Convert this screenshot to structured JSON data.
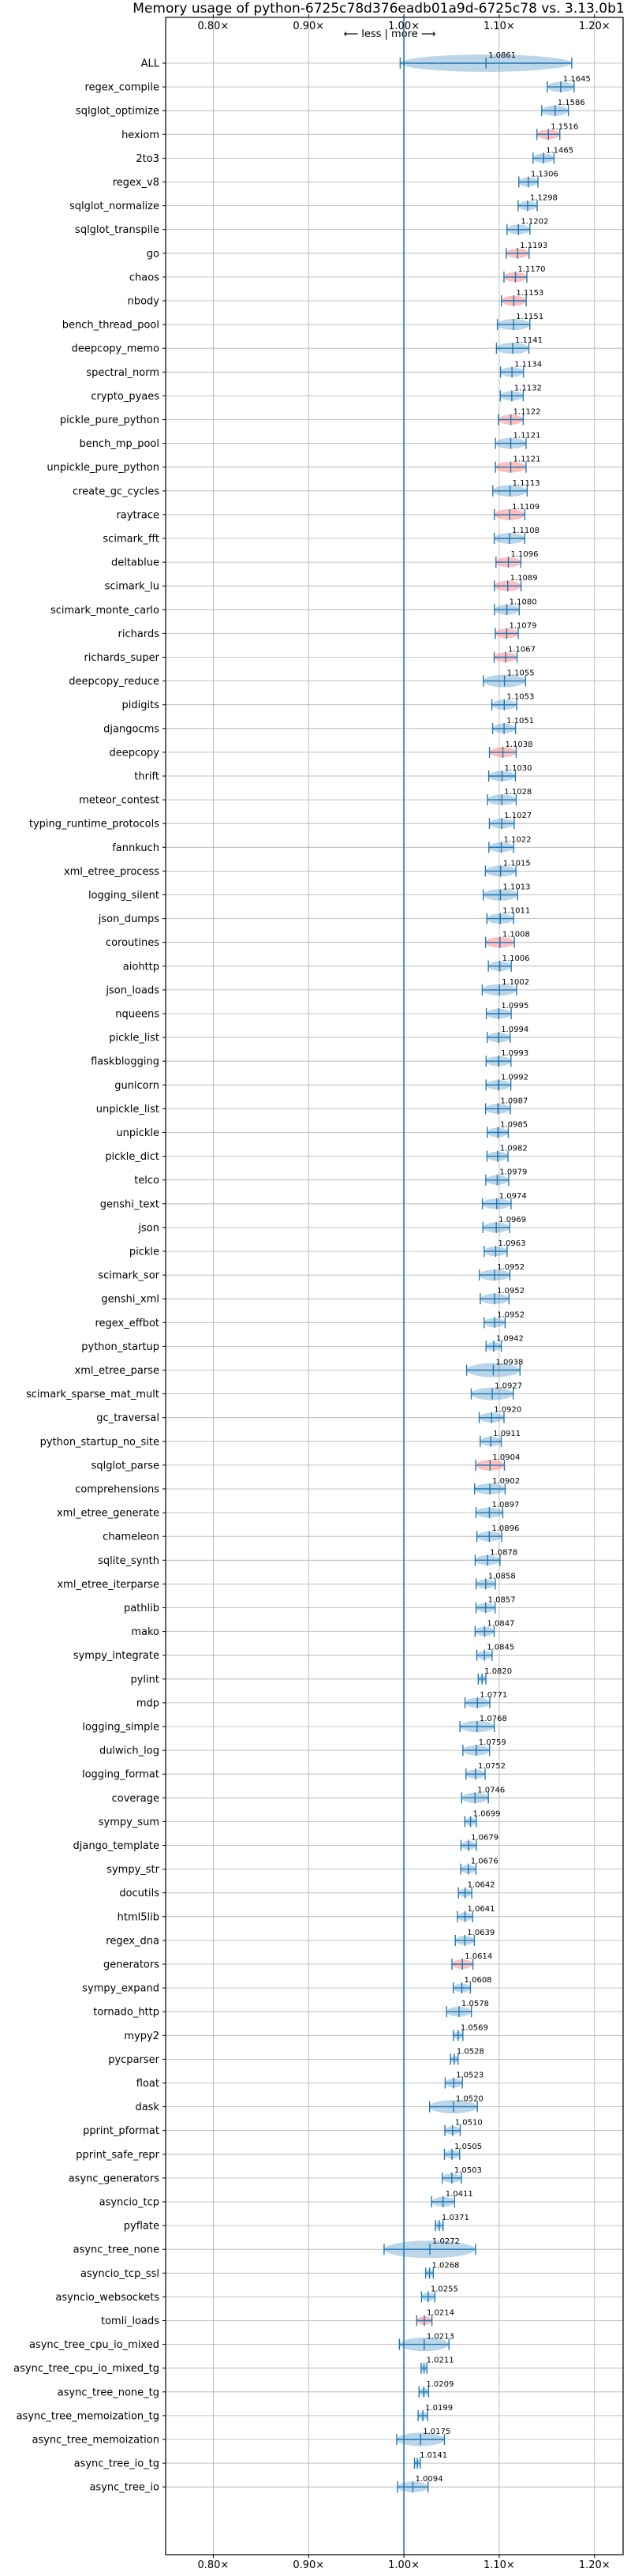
{
  "chart_data": {
    "type": "violin",
    "title": "Memory usage of python-6725c78d376eadb01a9d-6725c78 vs. 3.13.0b1",
    "xlabel": "",
    "ylabel": "",
    "direction_label": "⟵ less | more ⟶",
    "xlim": [
      0.75,
      1.23
    ],
    "x_ticks": [
      0.8,
      0.9,
      1.0,
      1.1,
      1.2
    ],
    "x_tick_labels": [
      "0.80×",
      "0.90×",
      "1.00×",
      "1.10×",
      "1.20×"
    ],
    "reference_line": 1.0,
    "grid": true,
    "colors": {
      "violin": "#1f77b4",
      "highlight": "#ff7f7f",
      "reference": "#1f77b4",
      "grid": "#b0b0b0"
    },
    "categories": [
      "ALL",
      "regex_compile",
      "sqlglot_optimize",
      "hexiom",
      "2to3",
      "regex_v8",
      "sqlglot_normalize",
      "sqlglot_transpile",
      "go",
      "chaos",
      "nbody",
      "bench_thread_pool",
      "deepcopy_memo",
      "spectral_norm",
      "crypto_pyaes",
      "pickle_pure_python",
      "bench_mp_pool",
      "unpickle_pure_python",
      "create_gc_cycles",
      "raytrace",
      "scimark_fft",
      "deltablue",
      "scimark_lu",
      "scimark_monte_carlo",
      "richards",
      "richards_super",
      "deepcopy_reduce",
      "pidigits",
      "djangocms",
      "deepcopy",
      "thrift",
      "meteor_contest",
      "typing_runtime_protocols",
      "fannkuch",
      "xml_etree_process",
      "logging_silent",
      "json_dumps",
      "coroutines",
      "aiohttp",
      "json_loads",
      "nqueens",
      "pickle_list",
      "flaskblogging",
      "gunicorn",
      "unpickle_list",
      "unpickle",
      "pickle_dict",
      "telco",
      "genshi_text",
      "json",
      "pickle",
      "scimark_sor",
      "genshi_xml",
      "regex_effbot",
      "python_startup",
      "xml_etree_parse",
      "scimark_sparse_mat_mult",
      "gc_traversal",
      "python_startup_no_site",
      "sqlglot_parse",
      "comprehensions",
      "xml_etree_generate",
      "chameleon",
      "sqlite_synth",
      "xml_etree_iterparse",
      "pathlib",
      "mako",
      "sympy_integrate",
      "pylint",
      "mdp",
      "logging_simple",
      "dulwich_log",
      "logging_format",
      "coverage",
      "sympy_sum",
      "django_template",
      "sympy_str",
      "docutils",
      "html5lib",
      "regex_dna",
      "generators",
      "sympy_expand",
      "tornado_http",
      "mypy2",
      "pycparser",
      "float",
      "dask",
      "pprint_pformat",
      "pprint_safe_repr",
      "async_generators",
      "asyncio_tcp",
      "pyflate",
      "async_tree_none",
      "asyncio_tcp_ssl",
      "asyncio_websockets",
      "tomli_loads",
      "async_tree_cpu_io_mixed",
      "async_tree_cpu_io_mixed_tg",
      "async_tree_none_tg",
      "async_tree_memoization_tg",
      "async_tree_memoization",
      "async_tree_io_tg",
      "async_tree_io"
    ],
    "values": [
      1.0861,
      1.1645,
      1.1586,
      1.1516,
      1.1465,
      1.1306,
      1.1298,
      1.1202,
      1.1193,
      1.117,
      1.1153,
      1.1151,
      1.1141,
      1.1134,
      1.1132,
      1.1122,
      1.1121,
      1.1121,
      1.1113,
      1.1109,
      1.1108,
      1.1096,
      1.1089,
      1.108,
      1.1079,
      1.1067,
      1.1055,
      1.1053,
      1.1051,
      1.1038,
      1.103,
      1.1028,
      1.1027,
      1.1022,
      1.1015,
      1.1013,
      1.1011,
      1.1008,
      1.1006,
      1.1002,
      1.0995,
      1.0994,
      1.0993,
      1.0992,
      1.0987,
      1.0985,
      1.0982,
      1.0979,
      1.0974,
      1.0969,
      1.0963,
      1.0952,
      1.0952,
      1.0952,
      1.0942,
      1.0938,
      1.0927,
      1.092,
      1.0911,
      1.0904,
      1.0902,
      1.0897,
      1.0896,
      1.0878,
      1.0858,
      1.0857,
      1.0847,
      1.0845,
      1.082,
      1.0771,
      1.0768,
      1.0759,
      1.0752,
      1.0746,
      1.0699,
      1.0679,
      1.0676,
      1.0642,
      1.0641,
      1.0639,
      1.0614,
      1.0608,
      1.0578,
      1.0569,
      1.0528,
      1.0523,
      1.052,
      1.051,
      1.0505,
      1.0503,
      1.0411,
      1.0371,
      1.0272,
      1.0268,
      1.0255,
      1.0214,
      1.0213,
      1.0211,
      1.0209,
      1.0199,
      1.0175,
      1.0141,
      1.0094
    ],
    "value_labels": [
      "1.0861",
      "1.1645",
      "1.1586",
      "1.1516",
      "1.1465",
      "1.1306",
      "1.1298",
      "1.1202",
      "1.1193",
      "1.1170",
      "1.1153",
      "1.1151",
      "1.1141",
      "1.1134",
      "1.1132",
      "1.1122",
      "1.1121",
      "1.1121",
      "1.1113",
      "1.1109",
      "1.1108",
      "1.1096",
      "1.1089",
      "1.1080",
      "1.1079",
      "1.1067",
      "1.1055",
      "1.1053",
      "1.1051",
      "1.1038",
      "1.1030",
      "1.1028",
      "1.1027",
      "1.1022",
      "1.1015",
      "1.1013",
      "1.1011",
      "1.1008",
      "1.1006",
      "1.1002",
      "1.0995",
      "1.0994",
      "1.0993",
      "1.0992",
      "1.0987",
      "1.0985",
      "1.0982",
      "1.0979",
      "1.0974",
      "1.0969",
      "1.0963",
      "1.0952",
      "1.0952",
      "1.0952",
      "1.0942",
      "1.0938",
      "1.0927",
      "1.0920",
      "1.0911",
      "1.0904",
      "1.0902",
      "1.0897",
      "1.0896",
      "1.0878",
      "1.0858",
      "1.0857",
      "1.0847",
      "1.0845",
      "1.0820",
      "1.0771",
      "1.0768",
      "1.0759",
      "1.0752",
      "1.0746",
      "1.0699",
      "1.0679",
      "1.0676",
      "1.0642",
      "1.0641",
      "1.0639",
      "1.0614",
      "1.0608",
      "1.0578",
      "1.0569",
      "1.0528",
      "1.0523",
      "1.0520",
      "1.0510",
      "1.0505",
      "1.0503",
      "1.0411",
      "1.0371",
      "1.0272",
      "1.0268",
      "1.0255",
      "1.0214",
      "1.0213",
      "1.0211",
      "1.0209",
      "1.0199",
      "1.0175",
      "1.0141",
      "1.0094"
    ],
    "spread": [
      0.09,
      0.014,
      0.014,
      0.012,
      0.011,
      0.01,
      0.01,
      0.012,
      0.012,
      0.012,
      0.013,
      0.017,
      0.017,
      0.012,
      0.012,
      0.013,
      0.016,
      0.016,
      0.018,
      0.016,
      0.016,
      0.013,
      0.014,
      0.013,
      0.012,
      0.012,
      0.022,
      0.013,
      0.012,
      0.014,
      0.014,
      0.015,
      0.013,
      0.013,
      0.016,
      0.018,
      0.014,
      0.015,
      0.012,
      0.018,
      0.013,
      0.012,
      0.013,
      0.013,
      0.013,
      0.011,
      0.011,
      0.012,
      0.015,
      0.014,
      0.012,
      0.016,
      0.015,
      0.011,
      0.008,
      0.028,
      0.022,
      0.013,
      0.011,
      0.015,
      0.016,
      0.014,
      0.013,
      0.013,
      0.01,
      0.01,
      0.01,
      0.008,
      0.004,
      0.013,
      0.018,
      0.014,
      0.01,
      0.014,
      0.006,
      0.008,
      0.008,
      0.007,
      0.008,
      0.01,
      0.011,
      0.009,
      0.013,
      0.005,
      0.004,
      0.009,
      0.025,
      0.008,
      0.008,
      0.01,
      0.012,
      0.004,
      0.048,
      0.004,
      0.007,
      0.008,
      0.026,
      0.003,
      0.005,
      0.005,
      0.025,
      0.003,
      0.016
    ],
    "highlighted": [
      "hexiom",
      "go",
      "chaos",
      "nbody",
      "pickle_pure_python",
      "unpickle_pure_python",
      "raytrace",
      "deltablue",
      "scimark_lu",
      "richards",
      "richards_super",
      "deepcopy",
      "coroutines",
      "sqlglot_parse",
      "generators",
      "tomli_loads"
    ]
  }
}
